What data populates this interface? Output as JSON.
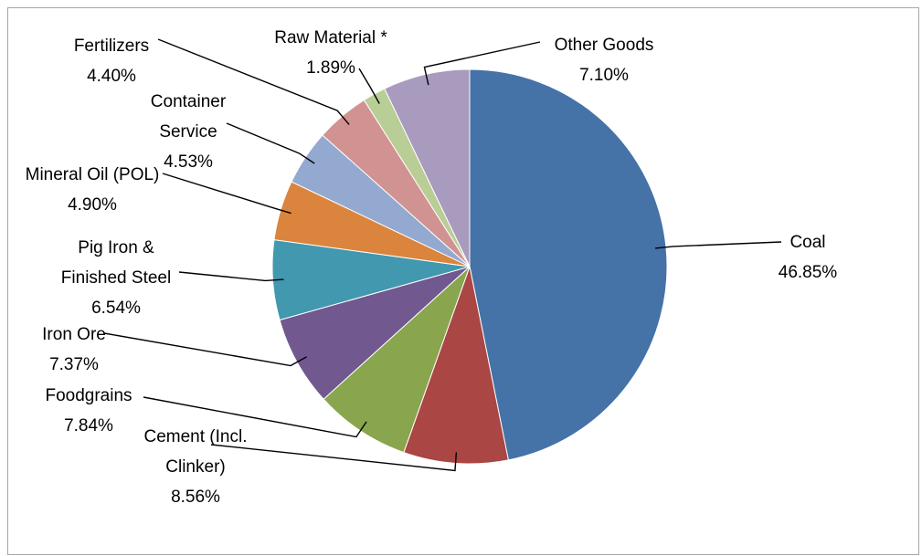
{
  "chart_data": {
    "type": "pie",
    "title": "",
    "legend": "none",
    "slices": [
      {
        "label": [
          "Coal"
        ],
        "value_label": "46.85%",
        "value": 46.85,
        "color": "#4572A7"
      },
      {
        "label": [
          "Cement (Incl.",
          "Clinker)"
        ],
        "value_label": "8.56%",
        "value": 8.56,
        "color": "#AA4643"
      },
      {
        "label": [
          "Foodgrains"
        ],
        "value_label": "7.84%",
        "value": 7.84,
        "color": "#89A54E"
      },
      {
        "label": [
          "Iron Ore"
        ],
        "value_label": "7.37%",
        "value": 7.37,
        "color": "#71588F"
      },
      {
        "label": [
          "Pig Iron &",
          "Finished Steel"
        ],
        "value_label": "6.54%",
        "value": 6.54,
        "color": "#4198AF"
      },
      {
        "label": [
          "Mineral Oil (POL)"
        ],
        "value_label": "4.90%",
        "value": 4.9,
        "color": "#DB843D"
      },
      {
        "label": [
          "Container",
          "Service"
        ],
        "value_label": "4.53%",
        "value": 4.53,
        "color": "#93A9CF"
      },
      {
        "label": [
          "Fertilizers"
        ],
        "value_label": "4.40%",
        "value": 4.4,
        "color": "#D19392"
      },
      {
        "label": [
          "Raw Material *"
        ],
        "value_label": "1.89%",
        "value": 1.89,
        "color": "#B9CD96"
      },
      {
        "label": [
          "Other Goods"
        ],
        "value_label": "7.10%",
        "value": 7.1,
        "color": "#A99BBD"
      }
    ]
  }
}
